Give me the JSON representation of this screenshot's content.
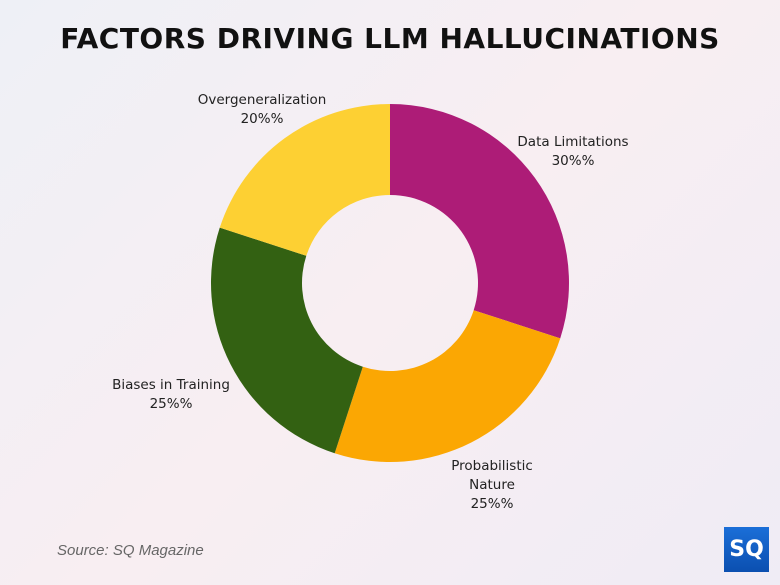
{
  "title": "FACTORS DRIVING LLM HALLUCINATIONS",
  "source": "Source: SQ Magazine",
  "logo_text": "SQ",
  "chart_data": {
    "type": "pie",
    "variant": "donut",
    "title": "FACTORS DRIVING LLM HALLUCINATIONS",
    "slices": [
      {
        "label": "Data Limitations",
        "value": 30,
        "value_label": "30%%",
        "color": "#AD1C77"
      },
      {
        "label": "Probabilistic Nature",
        "value": 25,
        "value_label": "25%%",
        "color": "#FBA703"
      },
      {
        "label": "Biases in Training",
        "value": 25,
        "value_label": "25%%",
        "color": "#336112"
      },
      {
        "label": "Overgeneralization",
        "value": 20,
        "value_label": "20%%",
        "color": "#FDD033"
      }
    ],
    "legend": "none"
  }
}
